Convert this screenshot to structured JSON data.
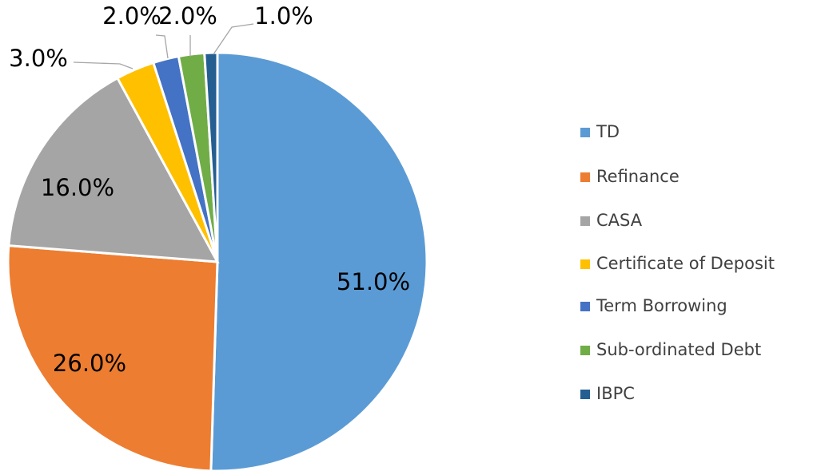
{
  "chart_data": {
    "type": "pie",
    "categories": [
      "TD",
      "Refinance",
      "CASA",
      "Certificate of Deposit",
      "Term Borrowing",
      "Sub-ordinated Debt",
      "IBPC"
    ],
    "values": [
      51,
      26,
      16,
      3,
      2,
      2,
      1
    ],
    "value_labels": [
      "51.0%",
      "26.0%",
      "16.0%",
      "3.0%",
      "2.0%",
      "2.0%",
      "1.0%"
    ],
    "colors": [
      "#5b9bd5",
      "#ed7d31",
      "#a5a5a5",
      "#ffc000",
      "#4472c4",
      "#70ad47",
      "#255e91"
    ],
    "legend": "right"
  }
}
